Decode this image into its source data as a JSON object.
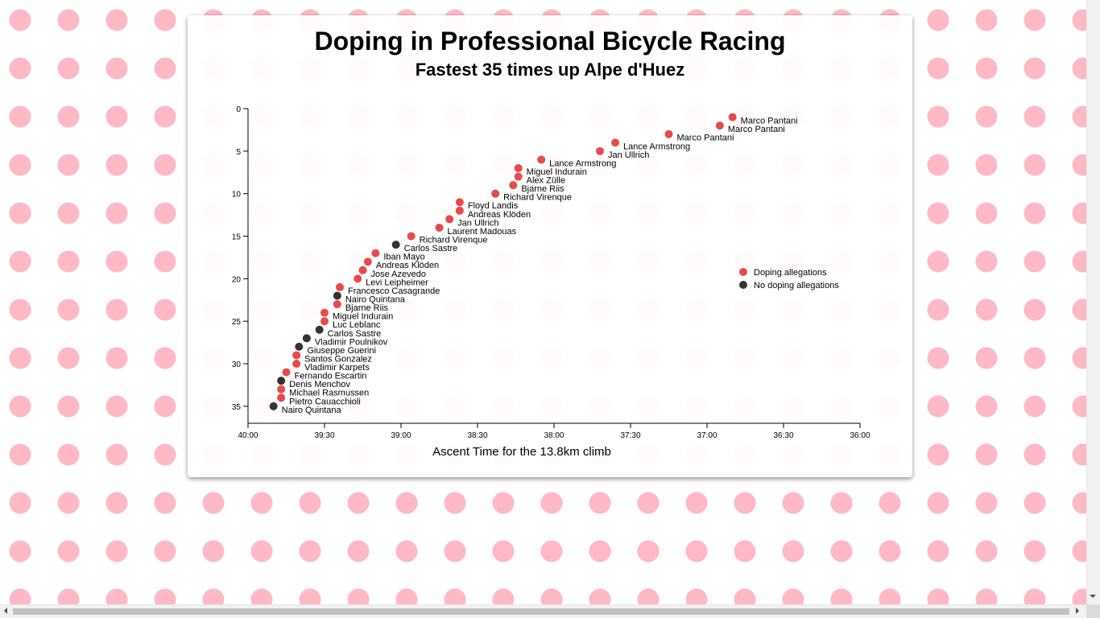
{
  "chart_data": {
    "type": "scatter",
    "title": "Doping in Professional Bicycle Racing",
    "subtitle": "Fastest 35 times up Alpe d'Huez",
    "xlabel": "Ascent Time for the 13.8km climb",
    "ylabel": "",
    "xlim": [
      "40:00",
      "36:00"
    ],
    "x_reversed": true,
    "ylim": [
      0,
      37
    ],
    "y_reversed": true,
    "x_ticks": [
      "40:00",
      "39:30",
      "39:00",
      "38:30",
      "38:00",
      "37:30",
      "37:00",
      "36:30",
      "36:00"
    ],
    "y_ticks": [
      0,
      5,
      10,
      15,
      20,
      25,
      30,
      35
    ],
    "legend": {
      "position": "right",
      "items": [
        {
          "label": "Doping allegations",
          "color": "#e84a4a"
        },
        {
          "label": "No doping allegations",
          "color": "#333333"
        }
      ]
    },
    "colors": {
      "doping": "#e84a4a",
      "clean": "#333333"
    },
    "points": [
      {
        "rank": 1,
        "name": "Marco Pantani",
        "time": "36:50",
        "doping": true
      },
      {
        "rank": 2,
        "name": "Marco Pantani",
        "time": "36:55",
        "doping": true
      },
      {
        "rank": 3,
        "name": "Marco Pantani",
        "time": "37:15",
        "doping": true
      },
      {
        "rank": 4,
        "name": "Lance Armstrong",
        "time": "37:36",
        "doping": true
      },
      {
        "rank": 5,
        "name": "Jan Ullrich",
        "time": "37:42",
        "doping": true
      },
      {
        "rank": 6,
        "name": "Lance Armstrong",
        "time": "38:05",
        "doping": true
      },
      {
        "rank": 7,
        "name": "Miguel Indurain",
        "time": "38:14",
        "doping": true
      },
      {
        "rank": 8,
        "name": "Alex Zülle",
        "time": "38:14",
        "doping": true
      },
      {
        "rank": 9,
        "name": "Bjarne Riis",
        "time": "38:16",
        "doping": true
      },
      {
        "rank": 10,
        "name": "Richard Virenque",
        "time": "38:23",
        "doping": true
      },
      {
        "rank": 11,
        "name": "Floyd Landis",
        "time": "38:37",
        "doping": true
      },
      {
        "rank": 12,
        "name": "Andreas Klöden",
        "time": "38:37",
        "doping": true
      },
      {
        "rank": 13,
        "name": "Jan Ullrich",
        "time": "38:41",
        "doping": true
      },
      {
        "rank": 14,
        "name": "Laurent Madouas",
        "time": "38:45",
        "doping": true
      },
      {
        "rank": 15,
        "name": "Richard Virenque",
        "time": "38:56",
        "doping": true
      },
      {
        "rank": 16,
        "name": "Carlos Sastre",
        "time": "39:02",
        "doping": false
      },
      {
        "rank": 17,
        "name": "Iban Mayo",
        "time": "39:10",
        "doping": true
      },
      {
        "rank": 18,
        "name": "Andreas Klöden",
        "time": "39:13",
        "doping": true
      },
      {
        "rank": 19,
        "name": "Jose Azevedo",
        "time": "39:15",
        "doping": true
      },
      {
        "rank": 20,
        "name": "Levi Leipheimer",
        "time": "39:17",
        "doping": true
      },
      {
        "rank": 21,
        "name": "Francesco Casagrande",
        "time": "39:24",
        "doping": true
      },
      {
        "rank": 22,
        "name": "Nairo Quintana",
        "time": "39:25",
        "doping": false
      },
      {
        "rank": 23,
        "name": "Bjarne Riis",
        "time": "39:25",
        "doping": true
      },
      {
        "rank": 24,
        "name": "Miguel Indurain",
        "time": "39:30",
        "doping": true
      },
      {
        "rank": 25,
        "name": "Luc Leblanc",
        "time": "39:30",
        "doping": true
      },
      {
        "rank": 26,
        "name": "Carlos Sastre",
        "time": "39:32",
        "doping": false
      },
      {
        "rank": 27,
        "name": "Vladimir Poulnikov",
        "time": "39:37",
        "doping": false
      },
      {
        "rank": 28,
        "name": "Giuseppe Guerini",
        "time": "39:40",
        "doping": false
      },
      {
        "rank": 29,
        "name": "Santos Gonzalez",
        "time": "39:41",
        "doping": true
      },
      {
        "rank": 30,
        "name": "Vladimir Karpets",
        "time": "39:41",
        "doping": true
      },
      {
        "rank": 31,
        "name": "Fernando Escartin",
        "time": "39:45",
        "doping": true
      },
      {
        "rank": 32,
        "name": "Denis Menchov",
        "time": "39:47",
        "doping": false
      },
      {
        "rank": 33,
        "name": "Michael Rasmussen",
        "time": "39:47",
        "doping": true
      },
      {
        "rank": 34,
        "name": "Pietro Cauacchioli",
        "time": "39:47",
        "doping": true
      },
      {
        "rank": 35,
        "name": "Nairo Quintana",
        "time": "39:50",
        "doping": false
      }
    ]
  }
}
